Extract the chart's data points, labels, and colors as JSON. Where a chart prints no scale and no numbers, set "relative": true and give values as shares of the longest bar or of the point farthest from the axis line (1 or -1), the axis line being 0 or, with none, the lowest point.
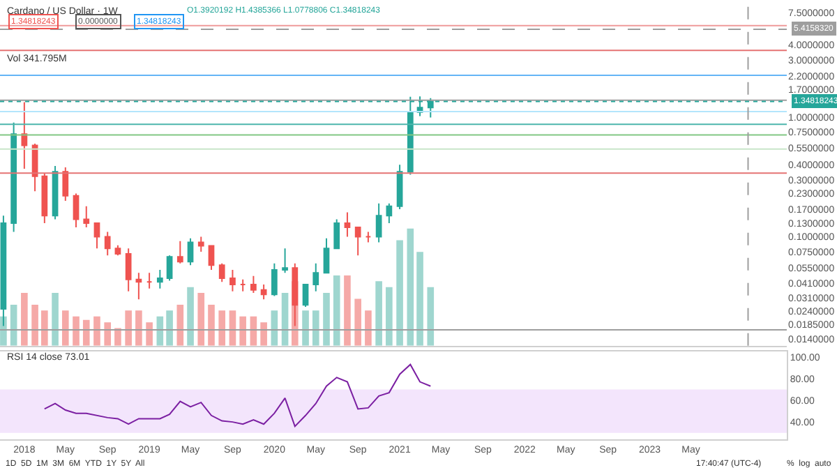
{
  "chart_data": [
    {
      "type": "candlestick",
      "title": "Cardano / US Dollar · 1W",
      "subtitle": "O1.3920192 H1.4385366 L1.0778806 C1.34818243",
      "x": [
        "2017-11",
        "2017-12",
        "2018-01",
        "2018-02",
        "2018-03",
        "2018-04",
        "2018-05",
        "2018-06",
        "2018-07",
        "2018-08",
        "2018-09",
        "2018-10",
        "2018-11",
        "2018-12",
        "2019-01",
        "2019-02",
        "2019-03",
        "2019-04",
        "2019-05",
        "2019-06",
        "2019-07",
        "2019-08",
        "2019-09",
        "2019-10",
        "2019-11",
        "2019-12",
        "2020-01",
        "2020-02",
        "2020-03",
        "2020-04",
        "2020-05",
        "2020-06",
        "2020-07",
        "2020-08",
        "2020-09",
        "2020-10",
        "2020-11",
        "2020-12",
        "2021-01",
        "2021-02",
        "2021-03",
        "2021-04"
      ],
      "ohlc": [
        [
          0.025,
          0.15,
          0.018,
          0.13
        ],
        [
          0.13,
          0.9,
          0.11,
          0.72
        ],
        [
          0.72,
          1.33,
          0.37,
          0.58
        ],
        [
          0.58,
          0.6,
          0.24,
          0.32
        ],
        [
          0.32,
          0.34,
          0.13,
          0.15
        ],
        [
          0.15,
          0.39,
          0.14,
          0.35
        ],
        [
          0.35,
          0.38,
          0.2,
          0.22
        ],
        [
          0.22,
          0.23,
          0.12,
          0.14
        ],
        [
          0.14,
          0.18,
          0.12,
          0.13
        ],
        [
          0.13,
          0.13,
          0.08,
          0.1
        ],
        [
          0.1,
          0.11,
          0.07,
          0.08
        ],
        [
          0.08,
          0.085,
          0.07,
          0.072
        ],
        [
          0.072,
          0.08,
          0.035,
          0.044
        ],
        [
          0.044,
          0.05,
          0.03,
          0.042
        ],
        [
          0.042,
          0.05,
          0.037,
          0.042
        ],
        [
          0.042,
          0.053,
          0.037,
          0.045
        ],
        [
          0.045,
          0.07,
          0.043,
          0.068
        ],
        [
          0.068,
          0.092,
          0.06,
          0.062
        ],
        [
          0.062,
          0.097,
          0.058,
          0.09
        ],
        [
          0.09,
          0.1,
          0.075,
          0.084
        ],
        [
          0.084,
          0.085,
          0.053,
          0.058
        ],
        [
          0.058,
          0.06,
          0.042,
          0.045
        ],
        [
          0.045,
          0.053,
          0.035,
          0.04
        ],
        [
          0.04,
          0.044,
          0.035,
          0.04
        ],
        [
          0.04,
          0.047,
          0.034,
          0.036
        ],
        [
          0.036,
          0.04,
          0.03,
          0.033
        ],
        [
          0.033,
          0.06,
          0.032,
          0.053
        ],
        [
          0.053,
          0.08,
          0.05,
          0.055
        ],
        [
          0.055,
          0.06,
          0.018,
          0.027
        ],
        [
          0.027,
          0.04,
          0.026,
          0.04
        ],
        [
          0.04,
          0.06,
          0.035,
          0.05
        ],
        [
          0.05,
          0.097,
          0.05,
          0.08
        ],
        [
          0.08,
          0.14,
          0.08,
          0.13
        ],
        [
          0.13,
          0.16,
          0.1,
          0.12
        ],
        [
          0.12,
          0.12,
          0.07,
          0.1
        ],
        [
          0.1,
          0.11,
          0.09,
          0.1
        ],
        [
          0.1,
          0.19,
          0.09,
          0.15
        ],
        [
          0.15,
          0.19,
          0.13,
          0.18
        ],
        [
          0.18,
          0.4,
          0.17,
          0.35
        ],
        [
          0.35,
          1.48,
          0.33,
          1.1
        ],
        [
          1.1,
          1.49,
          1.02,
          1.2
        ],
        [
          1.2,
          1.44,
          0.99,
          1.35
        ]
      ],
      "colors": [
        "#26a69a",
        "#26a69a",
        "#ef5350",
        "#ef5350",
        "#ef5350",
        "#26a69a",
        "#ef5350",
        "#ef5350",
        "#ef5350",
        "#ef5350",
        "#ef5350",
        "#ef5350",
        "#ef5350",
        "#ef5350",
        "#ef5350",
        "#26a69a",
        "#26a69a",
        "#ef5350",
        "#26a69a",
        "#ef5350",
        "#ef5350",
        "#ef5350",
        "#ef5350",
        "#ef5350",
        "#ef5350",
        "#ef5350",
        "#26a69a",
        "#26a69a",
        "#ef5350",
        "#26a69a",
        "#26a69a",
        "#26a69a",
        "#26a69a",
        "#ef5350",
        "#ef5350",
        "#ef5350",
        "#26a69a",
        "#26a69a",
        "#26a69a",
        "#26a69a",
        "#26a69a",
        "#26a69a"
      ],
      "log": true,
      "ylim": [
        0.0123,
        9.5
      ],
      "yticks": [
        {
          "value": 7.5,
          "label": "7.5000000"
        },
        {
          "value": 4,
          "label": "4.0000000"
        },
        {
          "value": 3,
          "label": "3.0000000"
        },
        {
          "value": 2.2,
          "label": "2.2000000"
        },
        {
          "value": 1.7,
          "label": "1.7000000"
        },
        {
          "value": 1,
          "label": "1.0000000"
        },
        {
          "value": 0.75,
          "label": "0.7500000"
        },
        {
          "value": 0.55,
          "label": "0.5500000"
        },
        {
          "value": 0.4,
          "label": "0.4000000"
        },
        {
          "value": 0.3,
          "label": "0.3000000"
        },
        {
          "value": 0.23,
          "label": "0.2300000"
        },
        {
          "value": 0.17,
          "label": "0.1700000"
        },
        {
          "value": 0.13,
          "label": "0.1300000"
        },
        {
          "value": 0.1,
          "label": "0.1000000"
        },
        {
          "value": 0.075,
          "label": "0.0750000"
        },
        {
          "value": 0.055,
          "label": "0.0550000"
        },
        {
          "value": 0.041,
          "label": "0.0410000"
        },
        {
          "value": 0.031,
          "label": "0.0310000"
        },
        {
          "value": 0.024,
          "label": "0.0240000"
        },
        {
          "value": 0.0185,
          "label": "0.0185000"
        },
        {
          "value": 0.014,
          "label": "0.0140000"
        }
      ],
      "xlim": [
        "2017-10-22",
        "2024-02-05"
      ],
      "tick_labels": "y",
      "grid": false,
      "ref_lines": [
        {
          "axis": "y",
          "value": 5.8,
          "color": "#ef9a9a"
        },
        {
          "axis": "y",
          "value": 5.415832,
          "label": "5.4158320",
          "color": "#9e9e9e",
          "line_style": "dashed"
        },
        {
          "axis": "y",
          "value": 3.6,
          "color": "#e57373"
        },
        {
          "axis": "y",
          "value": 2.23,
          "color": "#64b5f6"
        },
        {
          "axis": "y",
          "value": 1.38,
          "color": "#9e9e9e"
        },
        {
          "axis": "y",
          "value": 1.34818243,
          "label": "1.34818243",
          "color": "#26a69a",
          "line_style": "dotted"
        },
        {
          "axis": "y",
          "value": 1.11,
          "color": "#b3e5fc"
        },
        {
          "axis": "y",
          "value": 0.87,
          "color": "#4db6ac"
        },
        {
          "axis": "y",
          "value": 0.71,
          "color": "#81c784"
        },
        {
          "axis": "y",
          "value": 0.54,
          "color": "#c8e6c9"
        },
        {
          "axis": "y",
          "value": 0.34,
          "color": "#e57373"
        },
        {
          "axis": "y",
          "value": 0.0167,
          "color": "#9e9e9e"
        },
        {
          "axis": "x",
          "value": "2023-10-15",
          "color": "#9e9e9e",
          "line_style": "dashed"
        }
      ],
      "annotations": [
        "1.34818243",
        "0.0000000",
        "1.34818243",
        "1D  5D  1M  3M  6M  YTD  1Y  5Y  All",
        "17:40:47 (UTC-4)",
        "%  log  auto"
      ]
    },
    {
      "type": "bar",
      "title": "Vol 341.795M",
      "relative": true,
      "xlim": [
        "2017-10-22",
        "2024-02-05"
      ],
      "tick_labels": false,
      "x": [
        "2017-11",
        "2017-12",
        "2018-01",
        "2018-02",
        "2018-03",
        "2018-04",
        "2018-05",
        "2018-06",
        "2018-07",
        "2018-08",
        "2018-09",
        "2018-10",
        "2018-11",
        "2018-12",
        "2019-01",
        "2019-02",
        "2019-03",
        "2019-04",
        "2019-05",
        "2019-06",
        "2019-07",
        "2019-08",
        "2019-09",
        "2019-10",
        "2019-11",
        "2019-12",
        "2020-01",
        "2020-02",
        "2020-03",
        "2020-04",
        "2020-05",
        "2020-06",
        "2020-07",
        "2020-08",
        "2020-09",
        "2020-10",
        "2020-11",
        "2020-12",
        "2021-01",
        "2021-02",
        "2021-03",
        "2021-04"
      ],
      "values": [
        0.25,
        0.35,
        0.45,
        0.35,
        0.3,
        0.45,
        0.3,
        0.25,
        0.22,
        0.25,
        0.2,
        0.15,
        0.3,
        0.3,
        0.2,
        0.25,
        0.3,
        0.35,
        0.5,
        0.45,
        0.35,
        0.3,
        0.3,
        0.25,
        0.25,
        0.2,
        0.3,
        0.45,
        0.55,
        0.3,
        0.3,
        0.45,
        0.6,
        0.6,
        0.4,
        0.3,
        0.55,
        0.5,
        0.9,
        1,
        0.8,
        0.5
      ],
      "colors": [
        "#9fd6cf",
        "#9fd6cf",
        "#f5a9a7",
        "#f5a9a7",
        "#f5a9a7",
        "#9fd6cf",
        "#f5a9a7",
        "#f5a9a7",
        "#f5a9a7",
        "#f5a9a7",
        "#f5a9a7",
        "#f5a9a7",
        "#f5a9a7",
        "#f5a9a7",
        "#f5a9a7",
        "#9fd6cf",
        "#9fd6cf",
        "#f5a9a7",
        "#9fd6cf",
        "#f5a9a7",
        "#f5a9a7",
        "#f5a9a7",
        "#f5a9a7",
        "#f5a9a7",
        "#f5a9a7",
        "#f5a9a7",
        "#9fd6cf",
        "#9fd6cf",
        "#f5a9a7",
        "#9fd6cf",
        "#9fd6cf",
        "#9fd6cf",
        "#9fd6cf",
        "#f5a9a7",
        "#f5a9a7",
        "#f5a9a7",
        "#9fd6cf",
        "#9fd6cf",
        "#9fd6cf",
        "#9fd6cf",
        "#9fd6cf",
        "#9fd6cf"
      ]
    },
    {
      "type": "line",
      "title": "RSI 14 close 73.01",
      "color": "#7b1fa2",
      "x": [
        "2018-03",
        "2018-04",
        "2018-05",
        "2018-06",
        "2018-07",
        "2018-09",
        "2018-10",
        "2018-11",
        "2018-12",
        "2019-01",
        "2019-02",
        "2019-03",
        "2019-04",
        "2019-05",
        "2019-06",
        "2019-07",
        "2019-08",
        "2019-09",
        "2019-10",
        "2019-11",
        "2019-12",
        "2020-01",
        "2020-02",
        "2020-03",
        "2020-04",
        "2020-05",
        "2020-06",
        "2020-07",
        "2020-08",
        "2020-09",
        "2020-10",
        "2020-11",
        "2020-12",
        "2021-01",
        "2021-02",
        "2021-03",
        "2021-04"
      ],
      "values": [
        52,
        57,
        51,
        48,
        48,
        44,
        43,
        38,
        43,
        43,
        43,
        47,
        59,
        54,
        58,
        46,
        41,
        40,
        38,
        42,
        38,
        48,
        62,
        36,
        46,
        57,
        73,
        81,
        77,
        52,
        53,
        64,
        67,
        84,
        93,
        77,
        73
      ],
      "ylim": [
        24,
        105
      ],
      "yticks": [
        {
          "value": 100,
          "label": "100.00"
        },
        {
          "value": 80,
          "label": "80.00"
        },
        {
          "value": 60,
          "label": "60.00"
        },
        {
          "value": 40,
          "label": "40.00"
        }
      ],
      "xlim": [
        "2017-10-22",
        "2024-02-05"
      ],
      "xticks": [
        {
          "value": "2018-01-01",
          "label": "2018"
        },
        {
          "value": "2018-05-01",
          "label": "May"
        },
        {
          "value": "2018-09-01",
          "label": "Sep"
        },
        {
          "value": "2019-01-01",
          "label": "2019"
        },
        {
          "value": "2019-05-01",
          "label": "May"
        },
        {
          "value": "2019-09-01",
          "label": "Sep"
        },
        {
          "value": "2020-01-01",
          "label": "2020"
        },
        {
          "value": "2020-05-01",
          "label": "May"
        },
        {
          "value": "2020-09-01",
          "label": "Sep"
        },
        {
          "value": "2021-01-01",
          "label": "2021"
        },
        {
          "value": "2021-05-01",
          "label": "May"
        },
        {
          "value": "2021-09-01",
          "label": "Sep"
        },
        {
          "value": "2022-01-01",
          "label": "2022"
        },
        {
          "value": "2022-05-01",
          "label": "May"
        },
        {
          "value": "2022-09-01",
          "label": "Sep"
        },
        {
          "value": "2023-01-01",
          "label": "2023"
        },
        {
          "value": "2023-05-01",
          "label": "May"
        }
      ],
      "bands": [
        {
          "axis": "y",
          "from": 30,
          "to": 70,
          "color": "#f3e5fc"
        }
      ],
      "grid": false
    }
  ]
}
